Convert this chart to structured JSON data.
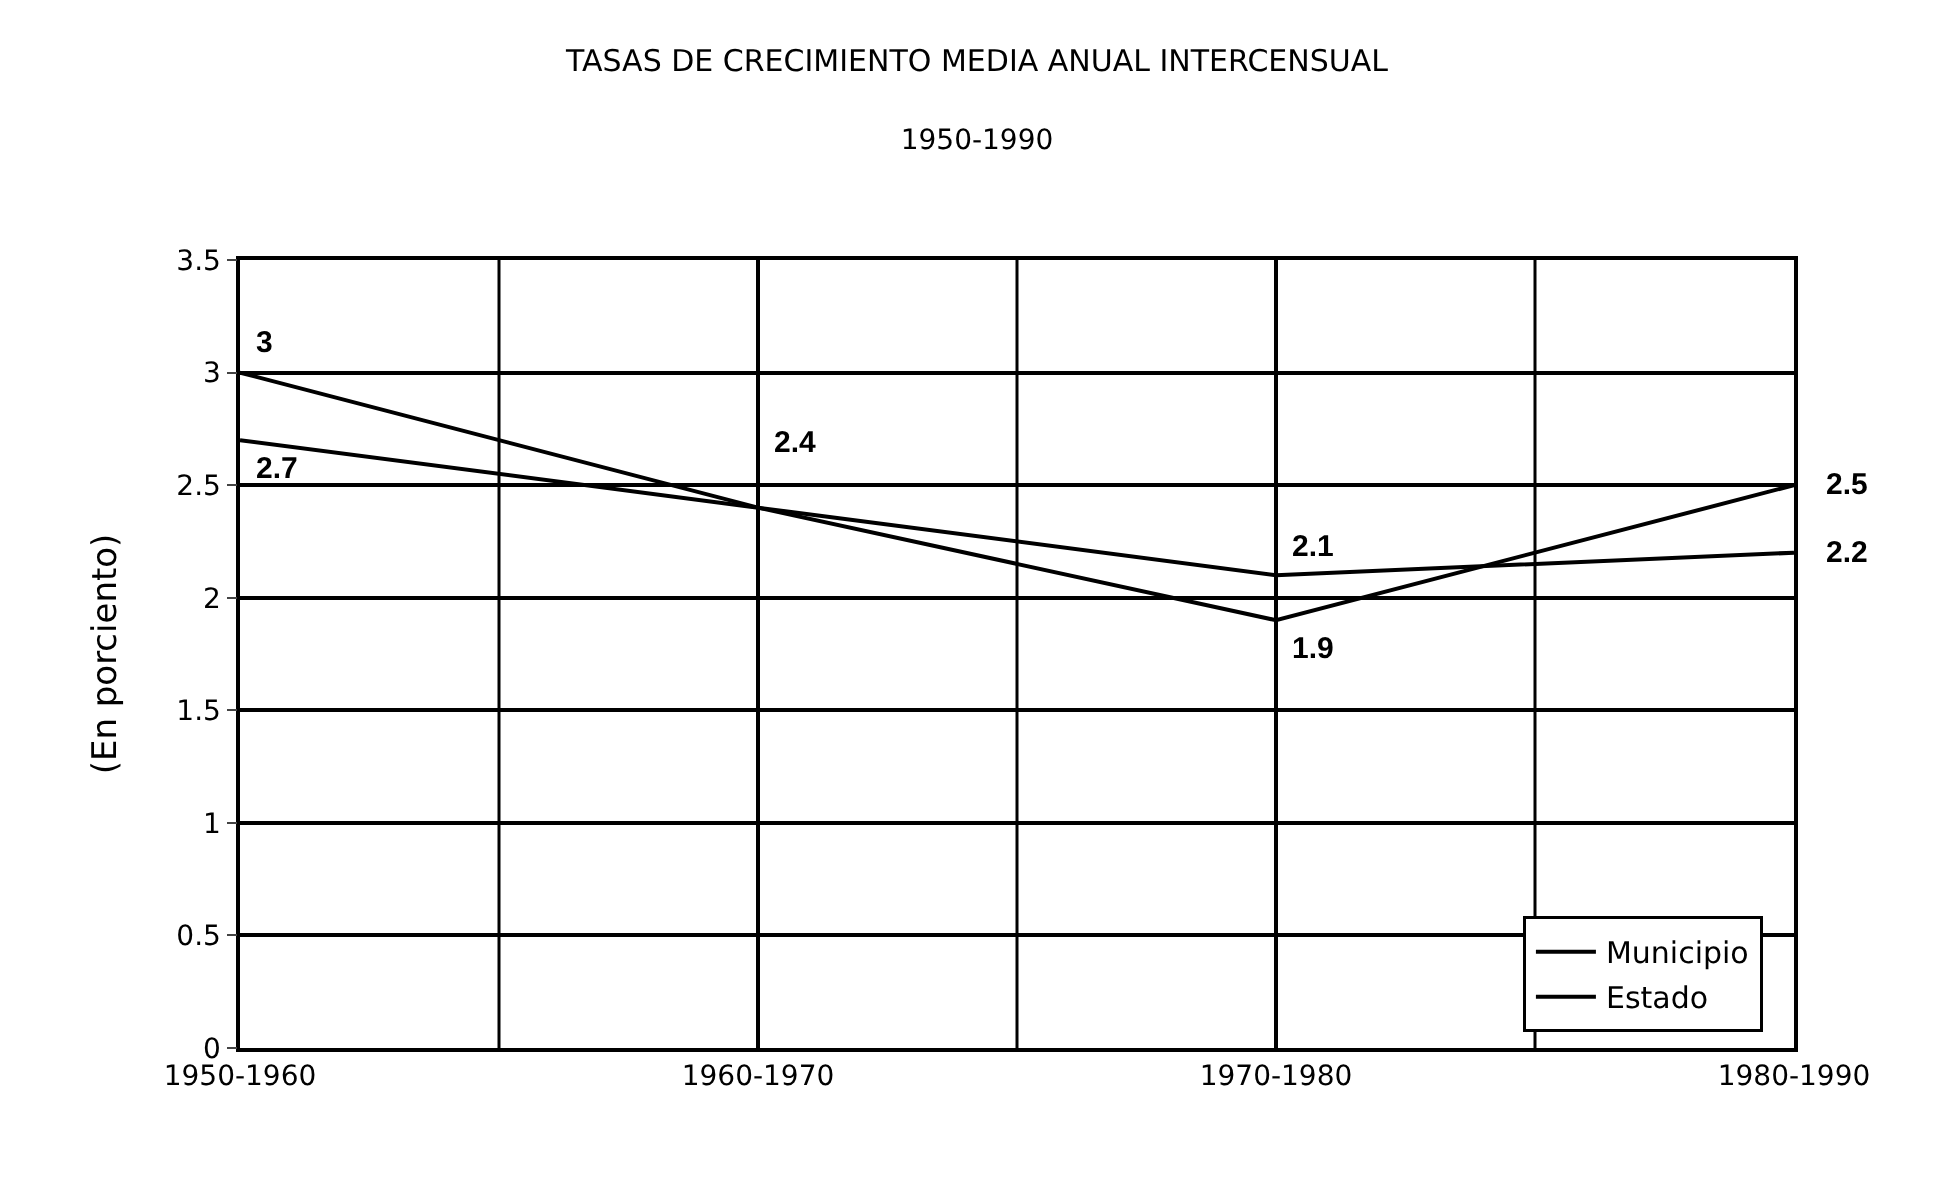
{
  "chart_data": {
    "type": "line",
    "title": "TASAS DE CRECIMIENTO MEDIA ANUAL INTERCENSUAL",
    "subtitle": "1950-1990",
    "ylabel": "(En porciento)",
    "categories": [
      "1950-1960",
      "1960-1970",
      "1970-1980",
      "1980-1990"
    ],
    "series": [
      {
        "name": "Municipio",
        "color": "#000000",
        "values": [
          3,
          2.4,
          1.9,
          2.5
        ],
        "value_labels": [
          "3",
          "2.4",
          "1.9",
          "2.5"
        ]
      },
      {
        "name": "Estado",
        "color": "#000000",
        "values": [
          2.7,
          2.4,
          2.1,
          2.2
        ],
        "value_labels": [
          "2.7",
          null,
          "2.1",
          "2.2"
        ]
      }
    ],
    "ylim": [
      0,
      3.5
    ],
    "yticks": [
      0,
      0.5,
      1,
      1.5,
      2,
      2.5,
      3,
      3.5
    ],
    "grid": true,
    "legend": "bottom right",
    "marker": "none",
    "line_style": "solid"
  }
}
